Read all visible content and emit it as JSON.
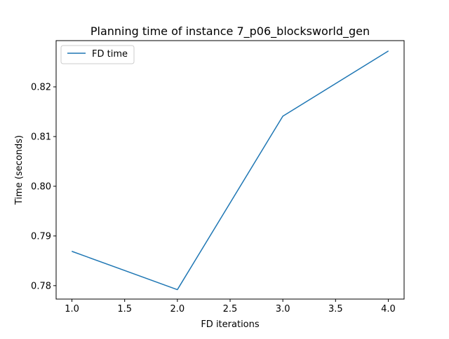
{
  "chart_data": {
    "type": "line",
    "title": "Planning time of instance 7_p06_blocksworld_gen",
    "xlabel": "FD iterations",
    "ylabel": "Time (seconds)",
    "xlim": [
      0.85,
      4.15
    ],
    "ylim": [
      0.7773,
      0.8293
    ],
    "x_ticks": [
      1.0,
      1.5,
      2.0,
      2.5,
      3.0,
      3.5,
      4.0
    ],
    "x_tick_labels": [
      "1.0",
      "1.5",
      "2.0",
      "2.5",
      "3.0",
      "3.5",
      "4.0"
    ],
    "y_ticks": [
      0.78,
      0.79,
      0.8,
      0.81,
      0.82
    ],
    "y_tick_labels": [
      "0.78",
      "0.79",
      "0.80",
      "0.81",
      "0.82"
    ],
    "grid": false,
    "legend_position": "upper left",
    "series": [
      {
        "name": "FD time",
        "color": "#1f77b4",
        "x": [
          1.0,
          2.0,
          3.0,
          4.0
        ],
        "y": [
          0.7869,
          0.7792,
          0.8141,
          0.8272
        ]
      }
    ]
  }
}
